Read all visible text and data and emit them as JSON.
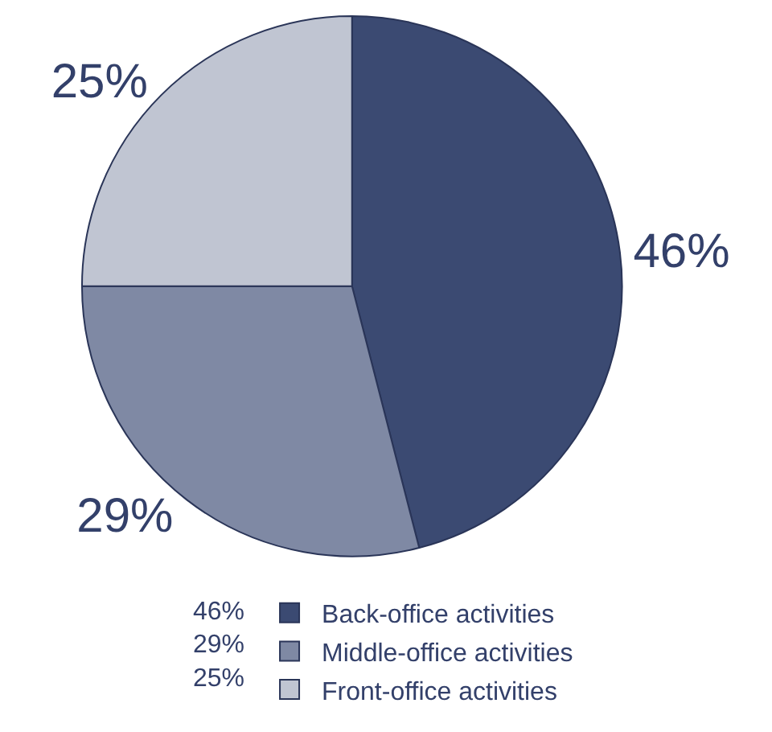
{
  "chart_data": {
    "type": "pie",
    "categories": [
      "Back-office activities",
      "Middle-office activities",
      "Front-office activities"
    ],
    "values": [
      46,
      29,
      25
    ],
    "value_labels": [
      "46%",
      "29%",
      "25%"
    ],
    "colors": [
      "#3b4a72",
      "#7f89a4",
      "#c0c5d2"
    ],
    "legend": "bottom"
  }
}
